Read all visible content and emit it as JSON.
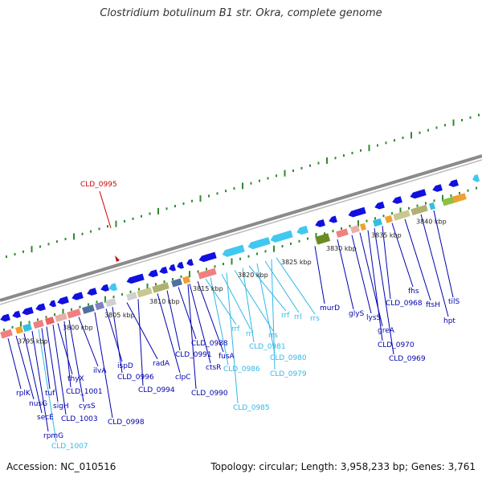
{
  "title": "Clostridium botulinum B1 str. Okra, complete genome",
  "footer": {
    "accession": "Accession: NC_010516",
    "info": "Topology: circular; Length: 3,958,233 bp; Genes: 3,761"
  },
  "colors": {
    "backbone": "#8a8a8a",
    "tick": "#2e8b2e",
    "forward_cds": "#1010e0",
    "reverse_cds": "#40c8f0",
    "label_forward": "#0000b0",
    "label_rna": "#30b8e8",
    "label_highlight": "#cc0000"
  },
  "ticks": [
    {
      "label": "3795 kbp"
    },
    {
      "label": "3800 kbp"
    },
    {
      "label": "3805 kbp"
    },
    {
      "label": "3810 kbp"
    },
    {
      "label": "3815 kbp"
    },
    {
      "label": "3820 kbp"
    },
    {
      "label": "3825 kbp"
    },
    {
      "label": "3830 kbp"
    },
    {
      "label": "3835 kbp"
    },
    {
      "label": "3840 kbp"
    }
  ],
  "highlight": {
    "label": "CLD_0995"
  },
  "gene_labels": [
    {
      "label": "rplK",
      "kind": "forward"
    },
    {
      "label": "nusG",
      "kind": "forward"
    },
    {
      "label": "secE",
      "kind": "forward"
    },
    {
      "label": "rpmG",
      "kind": "forward"
    },
    {
      "label": "CLD_1007",
      "kind": "rna"
    },
    {
      "label": "tuf",
      "kind": "forward"
    },
    {
      "label": "sigH",
      "kind": "forward"
    },
    {
      "label": "CLD_1003",
      "kind": "forward"
    },
    {
      "label": "thyX",
      "kind": "forward"
    },
    {
      "label": "CLD_1001",
      "kind": "forward"
    },
    {
      "label": "cysS",
      "kind": "forward"
    },
    {
      "label": "ilvA",
      "kind": "forward"
    },
    {
      "label": "CLD_0998",
      "kind": "forward"
    },
    {
      "label": "ispD",
      "kind": "forward"
    },
    {
      "label": "CLD_0996",
      "kind": "forward"
    },
    {
      "label": "radA",
      "kind": "forward"
    },
    {
      "label": "CLD_0994",
      "kind": "forward"
    },
    {
      "label": "clpC",
      "kind": "forward"
    },
    {
      "label": "CLD_0991",
      "kind": "forward"
    },
    {
      "label": "CLD_0988",
      "kind": "forward"
    },
    {
      "label": "ctsR",
      "kind": "forward"
    },
    {
      "label": "CLD_0990",
      "kind": "forward"
    },
    {
      "label": "rrf",
      "kind": "rna"
    },
    {
      "label": "fusA",
      "kind": "forward"
    },
    {
      "label": "CLD_0986",
      "kind": "rna"
    },
    {
      "label": "rrl",
      "kind": "rna"
    },
    {
      "label": "CLD_0985",
      "kind": "rna"
    },
    {
      "label": "rrs",
      "kind": "rna"
    },
    {
      "label": "CLD_0981",
      "kind": "rna"
    },
    {
      "label": "rrf",
      "kind": "rna"
    },
    {
      "label": "CLD_0980",
      "kind": "rna"
    },
    {
      "label": "rrl",
      "kind": "rna"
    },
    {
      "label": "CLD_0979",
      "kind": "rna"
    },
    {
      "label": "rrs",
      "kind": "rna"
    },
    {
      "label": "murD",
      "kind": "forward"
    },
    {
      "label": "glyS",
      "kind": "forward"
    },
    {
      "label": "lysS",
      "kind": "forward"
    },
    {
      "label": "greA",
      "kind": "forward"
    },
    {
      "label": "CLD_0970",
      "kind": "forward"
    },
    {
      "label": "CLD_0969",
      "kind": "forward"
    },
    {
      "label": "CLD_0968",
      "kind": "forward"
    },
    {
      "label": "fhs",
      "kind": "forward"
    },
    {
      "label": "ftsH",
      "kind": "forward"
    },
    {
      "label": "hpt",
      "kind": "forward"
    },
    {
      "label": "tilS",
      "kind": "forward"
    }
  ]
}
